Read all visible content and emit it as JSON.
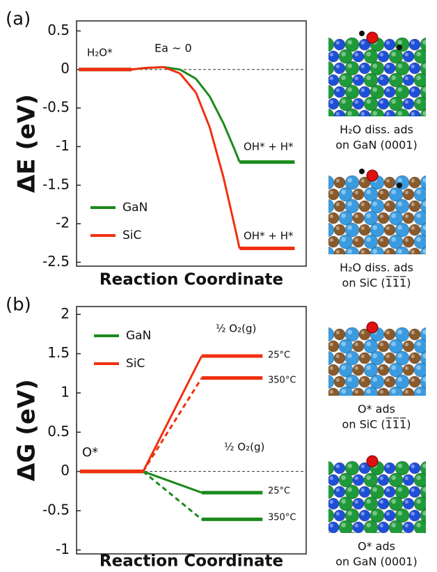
{
  "figure_labels": [
    "(a)",
    "(b)"
  ],
  "chart_data": [
    {
      "type": "line",
      "ylabel": "ΔE (eV)",
      "xlabel": "Reaction Coordinate",
      "xlim": [
        0,
        1
      ],
      "ylim": [
        -2.55,
        0.63
      ],
      "yticks": [
        0.5,
        0,
        -0.5,
        -1,
        -1.5,
        -2,
        -2.5
      ],
      "zero_line": true,
      "legend": "lower left",
      "x": [
        0.01,
        0.24,
        0.3,
        0.38,
        0.45,
        0.52,
        0.58,
        0.64,
        0.69,
        0.71,
        0.95
      ],
      "series": [
        {
          "name": "GaN",
          "color": "#1a8a1a",
          "values": [
            0,
            0,
            0.02,
            0.03,
            0,
            -0.12,
            -0.35,
            -0.7,
            -1.05,
            -1.2,
            -1.2
          ]
        },
        {
          "name": "SiC",
          "color": "#f03010",
          "values": [
            0,
            0,
            0.02,
            0.03,
            -0.05,
            -0.3,
            -0.75,
            -1.4,
            -2.05,
            -2.32,
            -2.32
          ]
        }
      ],
      "annotations": [
        "H₂O*",
        "Ea ~ 0",
        "OH* + H*",
        "OH* + H*"
      ]
    },
    {
      "type": "line",
      "ylabel": "ΔG (eV)",
      "xlabel": "Reaction Coordinate",
      "xlim": [
        0,
        1
      ],
      "ylim": [
        -1.05,
        2.1
      ],
      "yticks": [
        2,
        1.5,
        1,
        0.5,
        0,
        -0.5,
        -1
      ],
      "zero_line": true,
      "legend": "upper left",
      "x": [
        0.015,
        0.29,
        0.545,
        0.81
      ],
      "series": [
        {
          "name": "GaN",
          "color": "#1a8a1a",
          "values": [
            0,
            0,
            -0.27,
            -0.27
          ]
        },
        {
          "color": "#1a8a1a",
          "dash": true,
          "values": [
            0,
            0,
            -0.61,
            -0.61
          ]
        },
        {
          "name": "SiC",
          "color": "#f03010",
          "values": [
            0,
            0,
            1.47,
            1.47
          ]
        },
        {
          "color": "#f03010",
          "dash": true,
          "values": [
            0,
            0,
            1.19,
            1.19
          ]
        }
      ],
      "annotations": [
        "O*",
        "½ O₂(g)",
        "25°C",
        "350°C",
        "½ O₂(g)",
        "25°C",
        "350°C"
      ]
    }
  ],
  "images": [
    {
      "caption": [
        "H₂O diss. ads",
        "on GaN (0001)"
      ]
    },
    {
      "caption": [
        "H₂O diss. ads",
        "on SiC (1̅1̅1̅)"
      ]
    },
    {
      "caption": [
        "O* ads",
        "on SiC (1̅1̅1̅)"
      ]
    },
    {
      "caption": [
        "O* ads",
        "on GaN (0001)"
      ]
    }
  ]
}
